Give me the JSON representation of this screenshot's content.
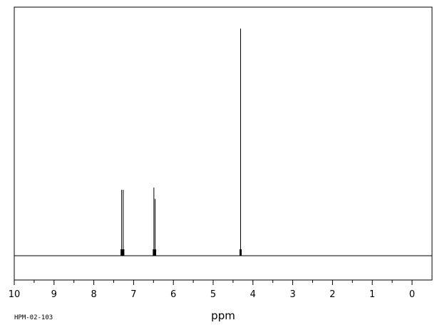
{
  "chart_data": {
    "type": "line",
    "title": "",
    "xlabel": "ppm",
    "ylabel": "",
    "xlim": [
      10,
      0
    ],
    "x_reversed": true,
    "ylim": [
      0,
      100
    ],
    "grid": false,
    "x_ticks": [
      "10",
      "9",
      "8",
      "7",
      "6",
      "5",
      "4",
      "3",
      "2",
      "1",
      "0"
    ],
    "peaks": [
      {
        "ppm": 7.3,
        "intensity": 29
      },
      {
        "ppm": 7.26,
        "intensity": 29
      },
      {
        "ppm": 6.49,
        "intensity": 30
      },
      {
        "ppm": 6.46,
        "intensity": 25
      },
      {
        "ppm": 4.31,
        "intensity": 100
      }
    ]
  },
  "sample_id": "HPM-02-103"
}
